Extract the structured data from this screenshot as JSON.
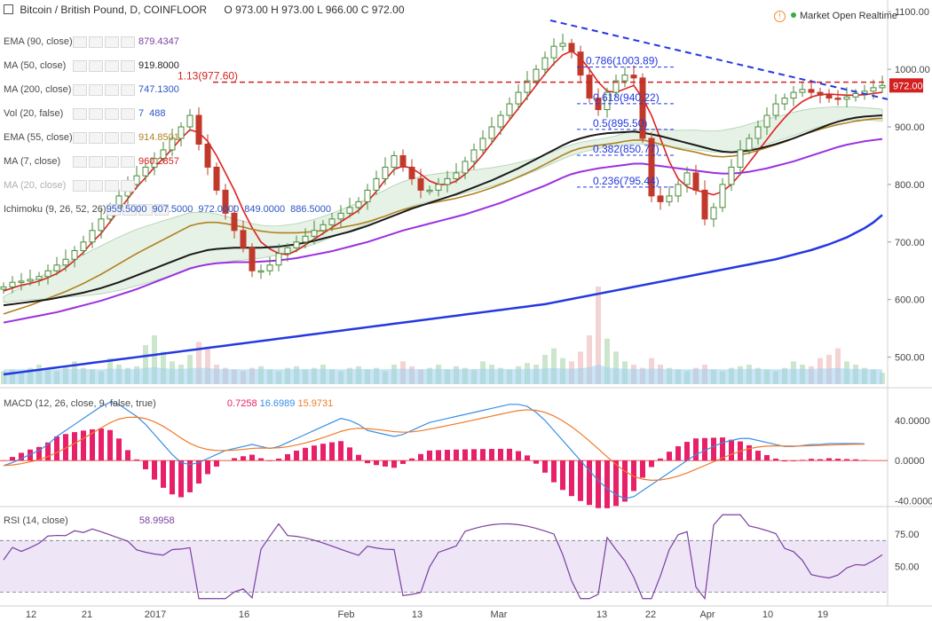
{
  "header": {
    "title": "Bitcoin / British Pound, D, COINFLOOR",
    "ohlc": {
      "o": "973.00",
      "h": "973.00",
      "l": "966.00",
      "c": "972.00"
    },
    "market_status": "Market Open Realtime"
  },
  "indicators": [
    {
      "name": "EMA (90, close)",
      "value": "879.4347",
      "color": "#7b3fa0"
    },
    {
      "name": "MA (50, close)",
      "value": "919.8000",
      "color": "#222222"
    },
    {
      "name": "MA (200, close)",
      "value": "747.1300",
      "color": "#2a55c4"
    },
    {
      "name": "Vol (20, false)",
      "value": "7",
      "value2": "488",
      "color": "#2a55c4"
    },
    {
      "name": "EMA (55, close)",
      "value": "914.8501",
      "color": "#b08020"
    },
    {
      "name": "MA (7, close)",
      "value": "960.2857",
      "color": "#d32020"
    },
    {
      "name": "MA (20, close)",
      "value": "",
      "color": "#aaaaaa"
    },
    {
      "name": "Ichimoku (9, 26, 52, 26)",
      "values": [
        "955.5000",
        "907.5000",
        "972.0000",
        "849.0000",
        "886.5000"
      ],
      "color": "#2a55c4"
    }
  ],
  "macd_label": {
    "name": "MACD (12, 26, close, 9, false, true)",
    "values": [
      "0.7258",
      "16.6989",
      "15.9731"
    ]
  },
  "rsi_label": {
    "name": "RSI (14, close)",
    "value": "58.9958"
  },
  "chart_data": {
    "type": "line",
    "title": "Bitcoin / British Pound, D, COINFLOOR",
    "x_ticks": [
      "12",
      "21",
      "2017",
      "16",
      "Feb",
      "13",
      "Mar",
      "13",
      "22",
      "Apr",
      "10",
      "19"
    ],
    "price_axis": {
      "ticks": [
        500,
        600,
        700,
        800,
        900,
        1000,
        1100
      ],
      "ylim": [
        450,
        1105
      ],
      "current_price": "972.00"
    },
    "series": [
      {
        "name": "Price",
        "values": [
          622,
          630,
          632,
          635,
          640,
          650,
          660,
          670,
          685,
          700,
          720,
          740,
          760,
          780,
          800,
          815,
          830,
          845,
          860,
          880,
          900,
          920,
          870,
          830,
          790,
          750,
          720,
          690,
          650,
          650,
          660,
          680,
          690,
          700,
          710,
          720,
          730,
          740,
          750,
          760,
          770,
          790,
          810,
          830,
          850,
          830,
          810,
          790,
          790,
          800,
          810,
          820,
          840,
          860,
          880,
          900,
          920,
          940,
          960,
          980,
          1000,
          1020,
          1040,
          1045,
          1030,
          990,
          950,
          930,
          960,
          980,
          990,
          985,
          880,
          780,
          770,
          780,
          800,
          820,
          790,
          740,
          760,
          800,
          830,
          860,
          880,
          900,
          920,
          940,
          950,
          960,
          965,
          960,
          955,
          950,
          948,
          952,
          958,
          962,
          968,
          972
        ]
      },
      {
        "name": "MA (7, close)",
        "values": [
          615,
          620,
          625,
          628,
          632,
          638,
          645,
          655,
          668,
          682,
          700,
          715,
          735,
          755,
          775,
          795,
          812,
          830,
          845,
          862,
          880,
          895,
          890,
          875,
          850,
          820,
          790,
          755,
          725,
          700,
          688,
          680,
          678,
          685,
          695,
          705,
          715,
          725,
          735,
          745,
          755,
          770,
          788,
          808,
          826,
          832,
          828,
          818,
          806,
          800,
          800,
          806,
          818,
          834,
          852,
          872,
          892,
          912,
          932,
          952,
          972,
          992,
          1010,
          1025,
          1032,
          1020,
          1000,
          978,
          962,
          960,
          966,
          972,
          950,
          920,
          880,
          840,
          810,
          796,
          790,
          786,
          782,
          788,
          800,
          818,
          838,
          858,
          878,
          898,
          916,
          932,
          944,
          952,
          956,
          957,
          956,
          955,
          955,
          956,
          958,
          960
        ]
      },
      {
        "name": "EMA (55, close)",
        "values": [
          575,
          580,
          585,
          590,
          596,
          602,
          608,
          614,
          621,
          628,
          636,
          644,
          653,
          662,
          671,
          680,
          688,
          696,
          704,
          712,
          720,
          728,
          732,
          734,
          734,
          732,
          729,
          726,
          722,
          719,
          717,
          716,
          716,
          716,
          717,
          718,
          720,
          722,
          725,
          728,
          731,
          735,
          740,
          745,
          751,
          756,
          760,
          764,
          767,
          770,
          773,
          776,
          780,
          784,
          789,
          794,
          800,
          806,
          813,
          820,
          827,
          835,
          843,
          851,
          858,
          863,
          866,
          868,
          870,
          872,
          875,
          877,
          877,
          874,
          870,
          866,
          862,
          859,
          856,
          852,
          849,
          848,
          849,
          851,
          855,
          859,
          864,
          869,
          874,
          880,
          886,
          891,
          896,
          900,
          904,
          907,
          910,
          912,
          914,
          915
        ]
      },
      {
        "name": "MA (50, close)",
        "values": [
          590,
          592,
          594,
          596,
          598,
          600,
          603,
          606,
          609,
          612,
          616,
          620,
          625,
          630,
          636,
          642,
          648,
          654,
          660,
          666,
          672,
          678,
          682,
          686,
          688,
          689,
          690,
          690,
          690,
          690,
          691,
          692,
          694,
          696,
          699,
          702,
          706,
          710,
          714,
          718,
          723,
          728,
          734,
          740,
          746,
          752,
          758,
          763,
          768,
          773,
          778,
          783,
          789,
          795,
          801,
          807,
          814,
          821,
          828,
          836,
          844,
          852,
          860,
          868,
          875,
          880,
          884,
          887,
          889,
          890,
          891,
          892,
          890,
          887,
          884,
          880,
          876,
          872,
          868,
          864,
          860,
          857,
          856,
          857,
          859,
          862,
          866,
          870,
          875,
          880,
          886,
          892,
          898,
          904,
          909,
          913,
          916,
          918,
          919,
          920
        ]
      },
      {
        "name": "EMA (90, close)",
        "values": [
          560,
          563,
          566,
          569,
          572,
          575,
          578,
          582,
          586,
          590,
          594,
          598,
          603,
          608,
          613,
          618,
          624,
          630,
          636,
          642,
          648,
          654,
          658,
          661,
          663,
          664,
          665,
          665,
          665,
          666,
          667,
          668,
          670,
          672,
          675,
          678,
          681,
          684,
          688,
          692,
          696,
          700,
          705,
          710,
          715,
          720,
          724,
          728,
          732,
          736,
          740,
          744,
          748,
          753,
          758,
          763,
          768,
          774,
          780,
          786,
          792,
          798,
          805,
          812,
          818,
          822,
          825,
          828,
          830,
          832,
          834,
          836,
          836,
          834,
          832,
          830,
          828,
          826,
          824,
          822,
          820,
          819,
          819,
          820,
          822,
          825,
          828,
          832,
          836,
          840,
          845,
          850,
          855,
          860,
          865,
          869,
          872,
          875,
          877,
          879
        ]
      },
      {
        "name": "MA (200, close)",
        "values": [
          470,
          472,
          474,
          476,
          478,
          480,
          482,
          484,
          486,
          488,
          490,
          492,
          494,
          496,
          498,
          500,
          502,
          504,
          506,
          508,
          510,
          512,
          514,
          516,
          518,
          520,
          522,
          524,
          526,
          528,
          530,
          532,
          534,
          536,
          538,
          540,
          542,
          544,
          546,
          548,
          550,
          552,
          554,
          556,
          558,
          560,
          562,
          564,
          566,
          568,
          570,
          572,
          574,
          576,
          578,
          580,
          582,
          584,
          586,
          588,
          590,
          592,
          595,
          598,
          601,
          604,
          607,
          610,
          613,
          616,
          619,
          622,
          625,
          628,
          631,
          634,
          637,
          640,
          643,
          646,
          649,
          652,
          655,
          658,
          661,
          664,
          667,
          670,
          674,
          678,
          682,
          686,
          691,
          696,
          702,
          708,
          716,
          724,
          734,
          747
        ]
      }
    ],
    "fibonacci": [
      {
        "label": "1.13(977.60)",
        "value": 977.6
      },
      {
        "label": "0.786(1003.89)",
        "value": 1003.89
      },
      {
        "label": "0.618(940.22)",
        "value": 940.22
      },
      {
        "label": "0.5(895.50)",
        "value": 895.5
      },
      {
        "label": "0.382(850.77)",
        "value": 850.77
      },
      {
        "label": "0.236(795.44)",
        "value": 795.44
      }
    ],
    "volume": [
      8,
      9,
      7,
      10,
      12,
      9,
      8,
      11,
      14,
      10,
      9,
      8,
      16,
      12,
      10,
      11,
      24,
      30,
      20,
      14,
      12,
      18,
      26,
      22,
      12,
      10,
      9,
      8,
      10,
      11,
      9,
      8,
      10,
      11,
      9,
      10,
      12,
      9,
      8,
      10,
      11,
      9,
      10,
      8,
      12,
      14,
      11,
      9,
      10,
      12,
      9,
      11,
      10,
      9,
      14,
      12,
      10,
      9,
      11,
      13,
      12,
      18,
      22,
      16,
      14,
      20,
      30,
      60,
      28,
      20,
      14,
      12,
      10,
      16,
      12,
      10,
      9,
      8,
      10,
      12,
      9,
      8,
      10,
      11,
      12,
      10,
      9,
      8,
      10,
      14,
      12,
      11,
      16,
      18,
      22,
      14,
      12,
      10,
      9,
      7
    ],
    "macd": {
      "ylim": [
        -45,
        70
      ],
      "ticks": [
        -40,
        0,
        40
      ],
      "macd": [
        -5,
        -2,
        2,
        6,
        10,
        16,
        24,
        30,
        36,
        42,
        48,
        54,
        58,
        56,
        50,
        44,
        36,
        26,
        16,
        6,
        -2,
        -4,
        -2,
        2,
        6,
        10,
        12,
        14,
        16,
        14,
        12,
        14,
        18,
        22,
        26,
        30,
        34,
        38,
        42,
        40,
        36,
        30,
        28,
        26,
        24,
        26,
        30,
        34,
        38,
        40,
        42,
        44,
        46,
        48,
        50,
        52,
        54,
        56,
        56,
        54,
        48,
        40,
        30,
        20,
        10,
        0,
        -10,
        -20,
        -28,
        -34,
        -38,
        -36,
        -30,
        -24,
        -18,
        -12,
        -6,
        0,
        6,
        10,
        14,
        18,
        20,
        22,
        22,
        20,
        18,
        16,
        14,
        14,
        15,
        16,
        16,
        17,
        17,
        17,
        17,
        16.7
      ]
    },
    "rsi": {
      "ylim": [
        20,
        95
      ],
      "ticks": [
        50,
        75
      ],
      "band": [
        30,
        70
      ],
      "last": 58.9958
    }
  },
  "colors": {
    "up_candle": "#4a8a3a",
    "down_candle": "#c0392b",
    "trendline": "#2438e0",
    "fib": "#2438e0",
    "resistance": "#d32020",
    "macd_line": "#3a8ee6",
    "signal_line": "#f07a2a",
    "histogram": "#e8206a",
    "rsi_line": "#7b3fa0",
    "rsi_band": "#e7dcf3"
  }
}
